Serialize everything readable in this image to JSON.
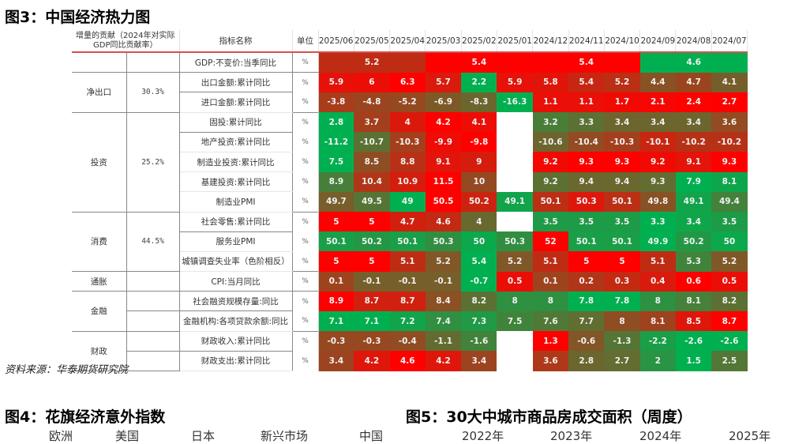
{
  "title": "图3：中国经济热力图",
  "source": "资料来源：华泰期货研究院",
  "fig4_title": "图4：花旗经济意外指数",
  "fig5_title": "图5：30大中城市商品房成交面积（周度）",
  "fig4_legend": [
    "欧洲",
    "美国",
    "日本",
    "新兴市场",
    "中国"
  ],
  "fig5_legend": [
    "2022年",
    "2023年",
    "2024年",
    "2025年"
  ],
  "chart_data": {
    "type": "heatmap",
    "header": {
      "group": "增量的贡献（2024年对实际GDP同比贡献率）",
      "name": "指标名称",
      "unit": "单位"
    },
    "months": [
      "2025/06",
      "2025/05",
      "2025/04",
      "2025/03",
      "2025/02",
      "2025/01",
      "2024/12",
      "2024/11",
      "2024/10",
      "2024/09",
      "2024/08",
      "2024/07"
    ],
    "color_scale": {
      "high": "#FF0000",
      "low": "#00B050",
      "empty": "#FFFFFF"
    },
    "gdp_row": {
      "name": "GDP:不变价:当季同比",
      "unit": "%",
      "quarters": [
        5.2,
        5.4,
        5.4,
        4.6
      ]
    },
    "groups": [
      {
        "name": "净出口",
        "share": "30.3%",
        "rows": [
          {
            "name": "出口金额:累计同比",
            "unit": "%",
            "values": [
              5.9,
              6.0,
              6.3,
              5.7,
              2.2,
              5.9,
              5.8,
              5.4,
              5.2,
              4.4,
              4.7,
              4.1
            ]
          },
          {
            "name": "进口金额:累计同比",
            "unit": "%",
            "values": [
              -3.8,
              -4.8,
              -5.2,
              -6.9,
              -8.3,
              -16.3,
              1.1,
              1.1,
              1.7,
              2.1,
              2.4,
              2.7
            ]
          }
        ]
      },
      {
        "name": "投资",
        "share": "25.2%",
        "rows": [
          {
            "name": "固投:累计同比",
            "unit": "%",
            "values": [
              2.8,
              3.7,
              4.0,
              4.2,
              4.1,
              null,
              3.2,
              3.3,
              3.4,
              3.4,
              3.4,
              3.6
            ]
          },
          {
            "name": "地产投资:累计同比",
            "unit": "%",
            "values": [
              -11.2,
              -10.7,
              -10.3,
              -9.9,
              -9.8,
              null,
              -10.6,
              -10.4,
              -10.3,
              -10.1,
              -10.2,
              -10.2
            ]
          },
          {
            "name": "制造业投资:累计同比",
            "unit": "%",
            "values": [
              7.5,
              8.5,
              8.8,
              9.1,
              9.0,
              null,
              9.2,
              9.3,
              9.3,
              9.2,
              9.1,
              9.3
            ]
          },
          {
            "name": "基建投资:累计同比",
            "unit": "%",
            "values": [
              8.9,
              10.4,
              10.9,
              11.5,
              10.0,
              null,
              9.2,
              9.4,
              9.4,
              9.3,
              7.9,
              8.1
            ]
          },
          {
            "name": "制造业PMI",
            "unit": "%",
            "values": [
              49.7,
              49.5,
              49,
              50.5,
              50.2,
              49.1,
              50.1,
              50.3,
              50.1,
              49.8,
              49.1,
              49.4
            ]
          }
        ]
      },
      {
        "name": "消费",
        "share": "44.5%",
        "rows": [
          {
            "name": "社会零售:累计同比",
            "unit": "%",
            "values": [
              5,
              5,
              4.7,
              4.6,
              4,
              null,
              3.5,
              3.5,
              3.5,
              3.3,
              3.4,
              3.5
            ]
          },
          {
            "name": "服务业PMI",
            "unit": "%",
            "values": [
              50.1,
              50.2,
              50.1,
              50.3,
              50,
              50.3,
              52,
              50.1,
              50.1,
              49.9,
              50.2,
              50
            ]
          },
          {
            "name": "城镇调查失业率（色阶相反）",
            "unit": "%",
            "reversed": true,
            "values": [
              5.0,
              5.0,
              5.1,
              5.2,
              5.4,
              5.2,
              5.1,
              5.0,
              5.0,
              5.1,
              5.3,
              5.2
            ]
          }
        ]
      },
      {
        "name": "通胀",
        "share": "",
        "rows": [
          {
            "name": "CPI:当月同比",
            "unit": "%",
            "values": [
              0.1,
              -0.1,
              -0.1,
              -0.1,
              -0.7,
              0.5,
              0.1,
              0.2,
              0.3,
              0.4,
              0.6,
              0.5
            ]
          }
        ]
      },
      {
        "name": "金融",
        "share": "",
        "rows": [
          {
            "name": "社会融资规模存量:同比",
            "unit": "%",
            "values": [
              8.9,
              8.7,
              8.7,
              8.4,
              8.2,
              8,
              8,
              7.8,
              7.8,
              8,
              8.1,
              8.2
            ]
          },
          {
            "name": "金融机构:各项贷款余额:同比",
            "unit": "%",
            "values": [
              7.1,
              7.1,
              7.2,
              7.4,
              7.3,
              7.5,
              7.6,
              7.7,
              8,
              8.1,
              8.5,
              8.7
            ]
          }
        ]
      },
      {
        "name": "财政",
        "share": "",
        "rows": [
          {
            "name": "财政收入:累计同比",
            "unit": "%",
            "values": [
              -0.3,
              -0.3,
              -0.4,
              -1.1,
              -1.6,
              null,
              1.3,
              -0.6,
              -1.3,
              -2.2,
              -2.6,
              -2.6
            ]
          },
          {
            "name": "财政支出:累计同比",
            "unit": "%",
            "values": [
              3.4,
              4.2,
              4.6,
              4.2,
              3.4,
              null,
              3.6,
              2.8,
              2.7,
              2,
              1.5,
              2.5
            ]
          }
        ]
      }
    ]
  }
}
